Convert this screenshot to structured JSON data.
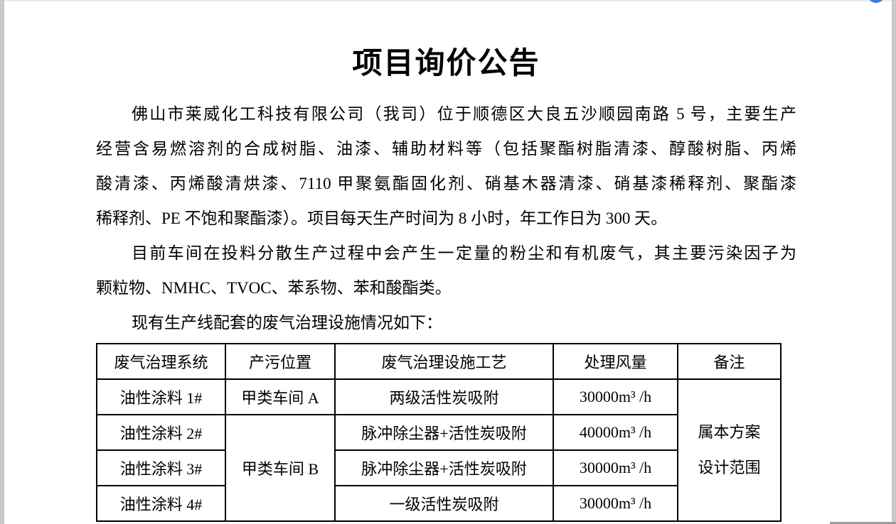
{
  "page": {
    "title": "项目询价公告",
    "paragraphs": {
      "p1": {
        "lines": [
          "佛山市莱威化工科技有限公司（我司）位于顺德区大良五沙顺园南路 5 号，主要生产",
          "经营含易燃溶剂的合成树脂、油漆、辅助材料等（包括聚酯树脂清漆、醇酸树脂、丙烯",
          "酸清漆、丙烯酸清烘漆、7110 甲聚氨酯固化剂、硝基木器清漆、硝基漆稀释剂、聚酯漆",
          "稀释剂、PE 不饱和聚酯漆）。项目每天生产时间为 8 小时，年工作日为 300 天。"
        ]
      },
      "p2": {
        "lines": [
          "目前车间在投料分散生产过程中会产生一定量的粉尘和有机废气，其主要污染因子为",
          "颗粒物、NMHC、TVOC、苯系物、苯和酸酯类。"
        ]
      },
      "p3": {
        "lines": [
          "现有生产线配套的废气治理设施情况如下："
        ]
      }
    },
    "table": {
      "headers": [
        "废气治理系统",
        "产污位置",
        "废气治理设施工艺",
        "处理风量",
        "备注"
      ],
      "rows": [
        {
          "system": "油性涂料 1#",
          "location": "甲类车间 A",
          "process": "两级活性炭吸附",
          "airflow": "30000m³ /h"
        },
        {
          "system": "油性涂料 2#",
          "location": "甲类车间 B",
          "process": "脉冲除尘器+活性炭吸附",
          "airflow": "40000m³ /h"
        },
        {
          "system": "油性涂料 3#",
          "process": "脉冲除尘器+活性炭吸附",
          "airflow": "30000m³ /h"
        },
        {
          "system": "油性涂料 4#",
          "process": "一级活性炭吸附",
          "airflow": "30000m³ /h"
        }
      ],
      "remark_lines": [
        "属本方案",
        "设计范围"
      ]
    },
    "chrome": {
      "float_button_color": "#2f7bf5",
      "edge_color": "#c9c9cc"
    }
  }
}
